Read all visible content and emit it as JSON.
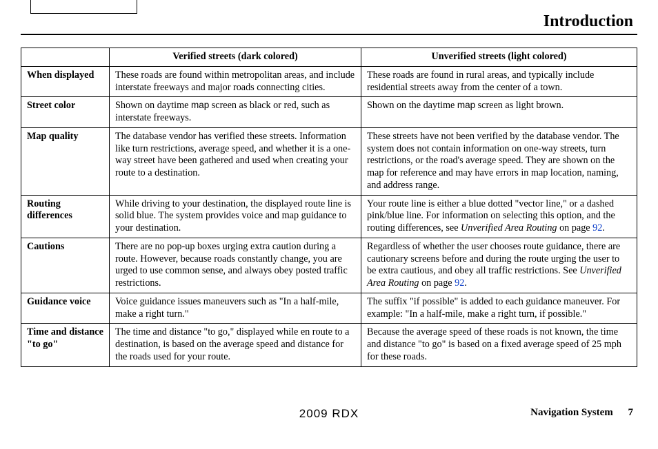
{
  "header": {
    "title": "Introduction"
  },
  "table": {
    "col_headers": {
      "verified": "Verified streets (dark colored)",
      "unverified": "Unverified streets (light colored)"
    },
    "rows": {
      "when_displayed": {
        "label": "When displayed",
        "verified": "These roads are found within metropolitan areas, and include interstate freeways and major roads connecting cities.",
        "unverified": "These roads are found in rural areas, and typically include residential streets away from the center of a town."
      },
      "street_color": {
        "label": "Street color",
        "v_pre": "Shown on daytime ",
        "v_code": "map",
        "v_post": " screen as black or red, such as interstate freeways.",
        "u_pre": "Shown on the daytime ",
        "u_code": "map",
        "u_post": " screen as light brown."
      },
      "map_quality": {
        "label": "Map quality",
        "verified": "The database vendor has verified these streets. Information like turn restrictions, average speed, and whether it is a one-way street have been gathered and used when creating your route to a destination.",
        "unverified": "These streets have not been verified by the database vendor. The system does not contain information on one-way streets, turn restrictions, or the road's average speed. They are shown on the map for reference and may have errors in map location, naming, and address range."
      },
      "routing": {
        "label": "Routing differences",
        "verified": "While driving to your destination, the displayed route line is solid blue. The system provides voice and map guidance to your destination.",
        "u_pre": "Your route line is either a blue dotted \"vector line,\" or a dashed pink/blue line. For information on selecting this option, and the routing differences, see ",
        "u_ital": "Unverified Area Routing",
        "u_mid": " on page ",
        "u_page": "92",
        "u_end": "."
      },
      "cautions": {
        "label": "Cautions",
        "verified": "There are no pop-up boxes urging extra caution during a route. However, because roads constantly change, you are urged to use common sense, and always obey posted traffic restrictions.",
        "u_pre": "Regardless of whether the user chooses route guidance, there are cautionary screens before and during the route urging the user to be extra cautious, and obey all traffic restrictions. See ",
        "u_ital": "Unverified Area Routing",
        "u_mid": " on page ",
        "u_page": "92",
        "u_end": "."
      },
      "guidance": {
        "label": "Guidance voice",
        "verified": "Voice guidance issues maneuvers such as \"In a half-mile, make a right turn.\"",
        "unverified": "The suffix \"if possible\" is added to each guidance maneuver. For example: \"In a half-mile, make a right turn, if possible.\""
      },
      "time": {
        "label": "Time and distance \"to go\"",
        "verified": "The time and distance \"to go,\" displayed while en route to a destination, is based on the average speed and distance for the roads used for your route.",
        "unverified": "Because the average speed of these roads is not known, the time and distance \"to go\" is based on a fixed average speed of 25 mph for these roads."
      }
    }
  },
  "footer": {
    "center": "2009  RDX",
    "right_label": "Navigation System",
    "page_number": "7"
  },
  "colors": {
    "link": "#0b3ec9",
    "text": "#000000",
    "bg": "#ffffff"
  }
}
